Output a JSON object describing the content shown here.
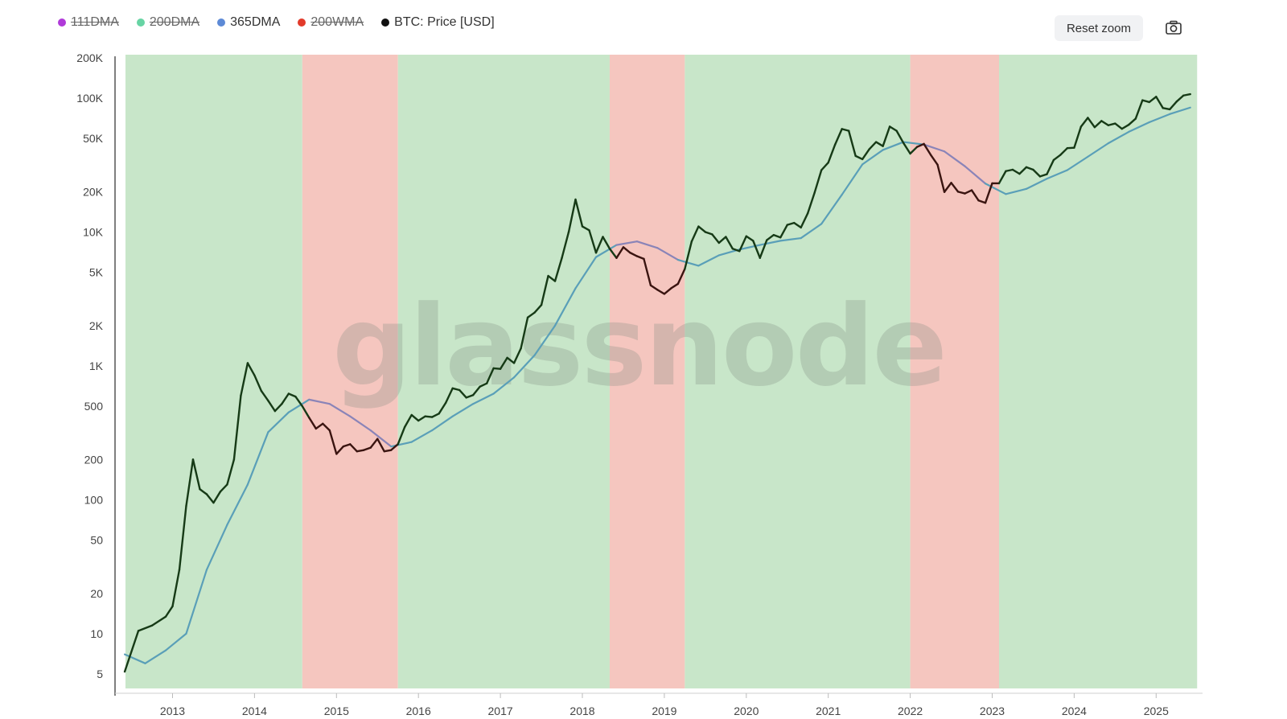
{
  "legend": [
    {
      "label": "111DMA",
      "color": "#b03ad9",
      "visible": false
    },
    {
      "label": "200DMA",
      "color": "#67d4a4",
      "visible": false
    },
    {
      "label": "365DMA",
      "color": "#5d8ad6",
      "visible": true
    },
    {
      "label": "200WMA",
      "color": "#e23a2a",
      "visible": false
    },
    {
      "label": "BTC: Price [USD]",
      "color": "#111111",
      "visible": true
    }
  ],
  "toolbar": {
    "reset_zoom_label": "Reset zoom",
    "screenshot_icon": "camera-icon"
  },
  "watermark": "glassnode",
  "colors": {
    "bull_zone": "#c8e6c9",
    "bear_zone": "#f5c6bf",
    "price_bull": "#163a16",
    "price_bear": "#3a1410",
    "ma_bull": "#5a9fb8",
    "ma_bear": "#8a84b8"
  },
  "chart_data": {
    "type": "line",
    "title": "",
    "xlabel": "",
    "ylabel": "",
    "y_scale": "log",
    "ylim": [
      4,
      200000
    ],
    "xlim": [
      "2012-06",
      "2025-07"
    ],
    "x_ticks": [
      "2013",
      "2014",
      "2015",
      "2016",
      "2017",
      "2018",
      "2019",
      "2020",
      "2021",
      "2022",
      "2023",
      "2024",
      "2025"
    ],
    "y_ticks": [
      {
        "value": 5,
        "label": "5"
      },
      {
        "value": 10,
        "label": "10"
      },
      {
        "value": 20,
        "label": "20"
      },
      {
        "value": 50,
        "label": "50"
      },
      {
        "value": 100,
        "label": "100"
      },
      {
        "value": 200,
        "label": "200"
      },
      {
        "value": 500,
        "label": "500"
      },
      {
        "value": 1000,
        "label": "1K"
      },
      {
        "value": 2000,
        "label": "2K"
      },
      {
        "value": 5000,
        "label": "5K"
      },
      {
        "value": 10000,
        "label": "10K"
      },
      {
        "value": 20000,
        "label": "20K"
      },
      {
        "value": 50000,
        "label": "50K"
      },
      {
        "value": 100000,
        "label": "100K"
      },
      {
        "value": 200000,
        "label": "200K"
      }
    ],
    "regimes": [
      {
        "start": "2012-06",
        "end": "2014-08",
        "state": "above"
      },
      {
        "start": "2014-08",
        "end": "2015-10",
        "state": "below"
      },
      {
        "start": "2015-10",
        "end": "2018-05",
        "state": "above"
      },
      {
        "start": "2018-05",
        "end": "2019-04",
        "state": "below"
      },
      {
        "start": "2019-04",
        "end": "2022-01",
        "state": "above"
      },
      {
        "start": "2022-01",
        "end": "2023-02",
        "state": "below"
      },
      {
        "start": "2023-02",
        "end": "2025-07",
        "state": "above"
      }
    ],
    "series": [
      {
        "name": "BTC: Price [USD]",
        "points": [
          [
            "2012-06",
            5.2
          ],
          [
            "2012-08",
            10.5
          ],
          [
            "2012-10",
            11.5
          ],
          [
            "2012-12",
            13.4
          ],
          [
            "2013-01",
            16
          ],
          [
            "2013-02",
            30
          ],
          [
            "2013-03",
            90
          ],
          [
            "2013-04",
            200
          ],
          [
            "2013-05",
            120
          ],
          [
            "2013-06",
            110
          ],
          [
            "2013-07",
            95
          ],
          [
            "2013-08",
            115
          ],
          [
            "2013-09",
            130
          ],
          [
            "2013-10",
            200
          ],
          [
            "2013-11",
            600
          ],
          [
            "2013-12",
            1050
          ],
          [
            "2014-01",
            850
          ],
          [
            "2014-02",
            650
          ],
          [
            "2014-03",
            550
          ],
          [
            "2014-04",
            460
          ],
          [
            "2014-05",
            520
          ],
          [
            "2014-06",
            620
          ],
          [
            "2014-07",
            590
          ],
          [
            "2014-08",
            500
          ],
          [
            "2014-09",
            410
          ],
          [
            "2014-10",
            340
          ],
          [
            "2014-11",
            370
          ],
          [
            "2014-12",
            330
          ],
          [
            "2015-01",
            220
          ],
          [
            "2015-02",
            250
          ],
          [
            "2015-03",
            260
          ],
          [
            "2015-04",
            230
          ],
          [
            "2015-05",
            235
          ],
          [
            "2015-06",
            245
          ],
          [
            "2015-07",
            285
          ],
          [
            "2015-08",
            230
          ],
          [
            "2015-09",
            235
          ],
          [
            "2015-10",
            260
          ],
          [
            "2015-11",
            350
          ],
          [
            "2015-12",
            430
          ],
          [
            "2016-01",
            390
          ],
          [
            "2016-02",
            420
          ],
          [
            "2016-03",
            415
          ],
          [
            "2016-04",
            440
          ],
          [
            "2016-05",
            530
          ],
          [
            "2016-06",
            680
          ],
          [
            "2016-07",
            660
          ],
          [
            "2016-08",
            580
          ],
          [
            "2016-09",
            605
          ],
          [
            "2016-10",
            700
          ],
          [
            "2016-11",
            740
          ],
          [
            "2016-12",
            960
          ],
          [
            "2017-01",
            950
          ],
          [
            "2017-02",
            1150
          ],
          [
            "2017-03",
            1050
          ],
          [
            "2017-04",
            1350
          ],
          [
            "2017-05",
            2300
          ],
          [
            "2017-06",
            2500
          ],
          [
            "2017-07",
            2850
          ],
          [
            "2017-08",
            4700
          ],
          [
            "2017-09",
            4300
          ],
          [
            "2017-10",
            6400
          ],
          [
            "2017-11",
            10000
          ],
          [
            "2017-12",
            17500
          ],
          [
            "2018-01",
            11000
          ],
          [
            "2018-02",
            10300
          ],
          [
            "2018-03",
            7000
          ],
          [
            "2018-04",
            9200
          ],
          [
            "2018-05",
            7500
          ],
          [
            "2018-06",
            6400
          ],
          [
            "2018-07",
            7700
          ],
          [
            "2018-08",
            7000
          ],
          [
            "2018-09",
            6600
          ],
          [
            "2018-10",
            6300
          ],
          [
            "2018-11",
            4000
          ],
          [
            "2018-12",
            3700
          ],
          [
            "2019-01",
            3450
          ],
          [
            "2019-02",
            3800
          ],
          [
            "2019-03",
            4100
          ],
          [
            "2019-04",
            5300
          ],
          [
            "2019-05",
            8500
          ],
          [
            "2019-06",
            11000
          ],
          [
            "2019-07",
            10000
          ],
          [
            "2019-08",
            9600
          ],
          [
            "2019-09",
            8300
          ],
          [
            "2019-10",
            9200
          ],
          [
            "2019-11",
            7500
          ],
          [
            "2019-12",
            7200
          ],
          [
            "2020-01",
            9300
          ],
          [
            "2020-02",
            8600
          ],
          [
            "2020-03",
            6400
          ],
          [
            "2020-04",
            8700
          ],
          [
            "2020-05",
            9500
          ],
          [
            "2020-06",
            9100
          ],
          [
            "2020-07",
            11300
          ],
          [
            "2020-08",
            11700
          ],
          [
            "2020-09",
            10800
          ],
          [
            "2020-10",
            13800
          ],
          [
            "2020-11",
            19700
          ],
          [
            "2020-12",
            29000
          ],
          [
            "2021-01",
            33000
          ],
          [
            "2021-02",
            45000
          ],
          [
            "2021-03",
            58800
          ],
          [
            "2021-04",
            57000
          ],
          [
            "2021-05",
            37000
          ],
          [
            "2021-06",
            35000
          ],
          [
            "2021-07",
            41500
          ],
          [
            "2021-08",
            47000
          ],
          [
            "2021-09",
            43800
          ],
          [
            "2021-10",
            61300
          ],
          [
            "2021-11",
            57000
          ],
          [
            "2021-12",
            46300
          ],
          [
            "2022-01",
            38500
          ],
          [
            "2022-02",
            43200
          ],
          [
            "2022-03",
            45500
          ],
          [
            "2022-04",
            37700
          ],
          [
            "2022-05",
            31800
          ],
          [
            "2022-06",
            19900
          ],
          [
            "2022-07",
            23300
          ],
          [
            "2022-08",
            20000
          ],
          [
            "2022-09",
            19400
          ],
          [
            "2022-10",
            20500
          ],
          [
            "2022-11",
            17200
          ],
          [
            "2022-12",
            16500
          ],
          [
            "2023-01",
            23100
          ],
          [
            "2023-02",
            23100
          ],
          [
            "2023-03",
            28500
          ],
          [
            "2023-04",
            29200
          ],
          [
            "2023-05",
            27200
          ],
          [
            "2023-06",
            30500
          ],
          [
            "2023-07",
            29200
          ],
          [
            "2023-08",
            26000
          ],
          [
            "2023-09",
            27000
          ],
          [
            "2023-10",
            34500
          ],
          [
            "2023-11",
            37700
          ],
          [
            "2023-12",
            42300
          ],
          [
            "2024-01",
            42600
          ],
          [
            "2024-02",
            61200
          ],
          [
            "2024-03",
            71300
          ],
          [
            "2024-04",
            60600
          ],
          [
            "2024-05",
            67500
          ],
          [
            "2024-06",
            62700
          ],
          [
            "2024-07",
            64600
          ],
          [
            "2024-08",
            59000
          ],
          [
            "2024-09",
            63300
          ],
          [
            "2024-10",
            70200
          ],
          [
            "2024-11",
            96400
          ],
          [
            "2024-12",
            93400
          ],
          [
            "2025-01",
            102400
          ],
          [
            "2025-02",
            84300
          ],
          [
            "2025-03",
            82500
          ],
          [
            "2025-04",
            94200
          ],
          [
            "2025-05",
            104600
          ],
          [
            "2025-06",
            107000
          ]
        ]
      },
      {
        "name": "365DMA",
        "points": [
          [
            "2012-06",
            7
          ],
          [
            "2012-09",
            6
          ],
          [
            "2012-12",
            7.5
          ],
          [
            "2013-03",
            10
          ],
          [
            "2013-06",
            30
          ],
          [
            "2013-09",
            65
          ],
          [
            "2013-12",
            130
          ],
          [
            "2014-03",
            320
          ],
          [
            "2014-06",
            450
          ],
          [
            "2014-09",
            560
          ],
          [
            "2014-12",
            520
          ],
          [
            "2015-03",
            420
          ],
          [
            "2015-06",
            330
          ],
          [
            "2015-09",
            250
          ],
          [
            "2015-12",
            270
          ],
          [
            "2016-03",
            330
          ],
          [
            "2016-06",
            420
          ],
          [
            "2016-09",
            520
          ],
          [
            "2016-12",
            620
          ],
          [
            "2017-03",
            820
          ],
          [
            "2017-06",
            1200
          ],
          [
            "2017-09",
            2000
          ],
          [
            "2017-12",
            3800
          ],
          [
            "2018-03",
            6500
          ],
          [
            "2018-06",
            8000
          ],
          [
            "2018-09",
            8500
          ],
          [
            "2018-12",
            7600
          ],
          [
            "2019-03",
            6200
          ],
          [
            "2019-06",
            5600
          ],
          [
            "2019-09",
            6700
          ],
          [
            "2019-12",
            7400
          ],
          [
            "2020-03",
            8000
          ],
          [
            "2020-06",
            8600
          ],
          [
            "2020-09",
            9000
          ],
          [
            "2020-12",
            11500
          ],
          [
            "2021-03",
            19000
          ],
          [
            "2021-06",
            32000
          ],
          [
            "2021-09",
            41000
          ],
          [
            "2021-12",
            47000
          ],
          [
            "2022-03",
            45000
          ],
          [
            "2022-06",
            40000
          ],
          [
            "2022-09",
            31000
          ],
          [
            "2022-12",
            23000
          ],
          [
            "2023-03",
            19200
          ],
          [
            "2023-06",
            21000
          ],
          [
            "2023-09",
            25000
          ],
          [
            "2023-12",
            29000
          ],
          [
            "2024-03",
            36500
          ],
          [
            "2024-06",
            46000
          ],
          [
            "2024-09",
            56000
          ],
          [
            "2024-12",
            66000
          ],
          [
            "2025-03",
            76000
          ],
          [
            "2025-06",
            85000
          ]
        ]
      }
    ]
  }
}
